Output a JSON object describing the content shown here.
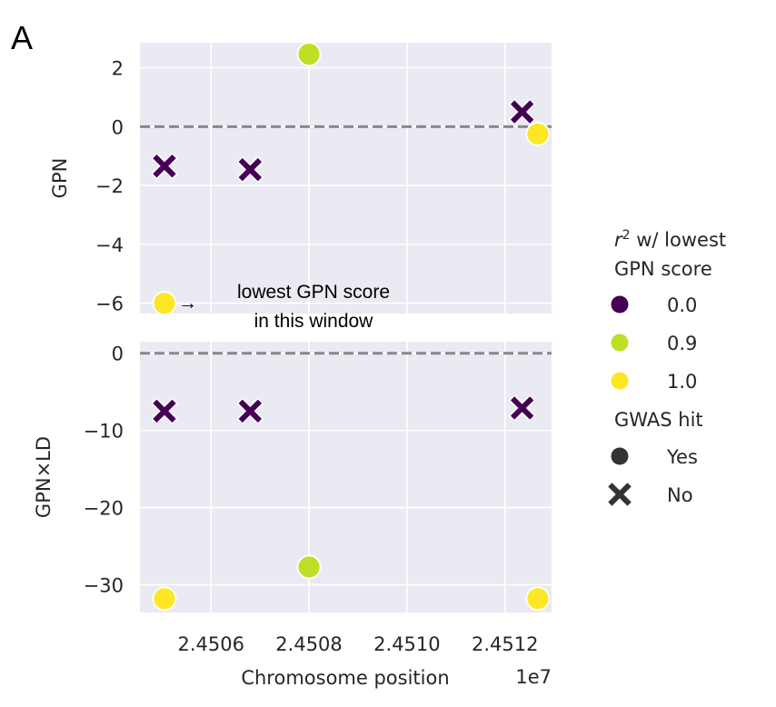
{
  "panel_label": "A",
  "chart_data": {
    "type": "scatter",
    "x_offset_label": "1e7",
    "xlabel": "Chromosome position",
    "xlim": [
      24504550,
      24512950
    ],
    "x_ticks": [
      24506000,
      24508000,
      24510000,
      24512000
    ],
    "x_tick_labels": [
      "2.4506",
      "2.4508",
      "2.4510",
      "2.4512"
    ],
    "grid": true,
    "reference_line_y": 0,
    "points": [
      {
        "x": 24505050,
        "gpn": -1.34,
        "gpn_ld": -7.5,
        "r2": "0.0",
        "gwas_hit": "No"
      },
      {
        "x": 24506800,
        "gpn": -1.46,
        "gpn_ld": -7.5,
        "r2": "0.0",
        "gwas_hit": "No"
      },
      {
        "x": 24508000,
        "gpn": 2.46,
        "gpn_ld": -27.7,
        "r2": "0.9",
        "gwas_hit": "Yes"
      },
      {
        "x": 24512350,
        "gpn": 0.5,
        "gpn_ld": -7.1,
        "r2": "0.0",
        "gwas_hit": "No"
      },
      {
        "x": 24512670,
        "gpn": -0.25,
        "gpn_ld": -31.8,
        "r2": "1.0",
        "gwas_hit": "Yes"
      },
      {
        "x": 24505050,
        "gpn": -6.0,
        "gpn_ld": -31.8,
        "r2": "1.0",
        "gwas_hit": "Yes"
      }
    ],
    "subplots": [
      {
        "name": "gpn",
        "ylabel": "GPN",
        "y_field": "gpn",
        "ylim": [
          -6.35,
          2.85
        ],
        "y_ticks": [
          2,
          0,
          -2,
          -4,
          -6
        ],
        "y_tick_labels": [
          "2",
          "0",
          "−2",
          "−4",
          "−6"
        ],
        "annotation": {
          "line1": "lowest GPN score",
          "line2": "in this window",
          "arrow": "→",
          "target_point_index": 5
        }
      },
      {
        "name": "gpn_ld",
        "ylabel": "GPN×LD",
        "y_field": "gpn_ld",
        "ylim": [
          -33.6,
          1.5
        ],
        "y_ticks": [
          0,
          -10,
          -20,
          -30
        ],
        "y_tick_labels": [
          "0",
          "−10",
          "−20",
          "−30"
        ]
      }
    ],
    "legend": {
      "placement": "right",
      "hue_title_prefix": "r",
      "hue_title_sup": "2",
      "hue_title_rest": " w/ lowest",
      "hue_title_line2": "GPN score",
      "hue_entries": [
        {
          "label": "0.0",
          "color": "#440154"
        },
        {
          "label": "0.9",
          "color": "#bddf26"
        },
        {
          "label": "1.0",
          "color": "#fde725"
        }
      ],
      "style_title": "GWAS hit",
      "style_entries": [
        {
          "label": "Yes",
          "marker": "circle"
        },
        {
          "label": "No",
          "marker": "x"
        }
      ]
    },
    "colors": {
      "0.0": "#440154",
      "0.9": "#bddf26",
      "1.0": "#fde725",
      "background": "#eaeaf2",
      "grid": "#ffffff",
      "refline": "#888888",
      "legend_marker": "#333333"
    }
  }
}
